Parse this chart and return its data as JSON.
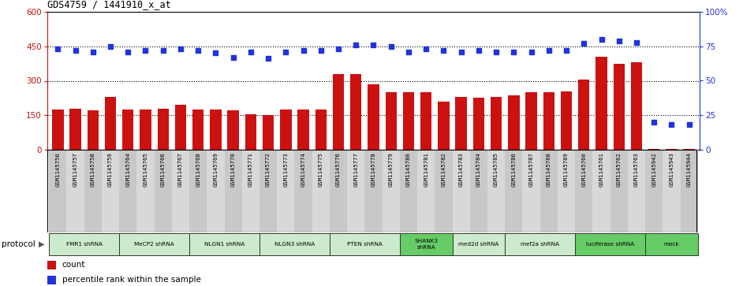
{
  "title": "GDS4759 / 1441910_x_at",
  "samples": [
    "GSM1145756",
    "GSM1145757",
    "GSM1145758",
    "GSM1145759",
    "GSM1145764",
    "GSM1145765",
    "GSM1145766",
    "GSM1145767",
    "GSM1145768",
    "GSM1145769",
    "GSM1145770",
    "GSM1145771",
    "GSM1145772",
    "GSM1145773",
    "GSM1145774",
    "GSM1145775",
    "GSM1145776",
    "GSM1145777",
    "GSM1145778",
    "GSM1145779",
    "GSM1145780",
    "GSM1145781",
    "GSM1145782",
    "GSM1145783",
    "GSM1145784",
    "GSM1145785",
    "GSM1145786",
    "GSM1145787",
    "GSM1145788",
    "GSM1145789",
    "GSM1145760",
    "GSM1145761",
    "GSM1145762",
    "GSM1145763",
    "GSM1145942",
    "GSM1145943",
    "GSM1145944"
  ],
  "bar_values": [
    175,
    180,
    170,
    230,
    175,
    175,
    180,
    195,
    175,
    175,
    170,
    155,
    150,
    175,
    175,
    175,
    330,
    330,
    285,
    250,
    250,
    250,
    210,
    230,
    225,
    230,
    235,
    250,
    250,
    255,
    305,
    405,
    375,
    380,
    5,
    5,
    5
  ],
  "percentile_values": [
    73,
    72,
    71,
    75,
    71,
    72,
    72,
    73,
    72,
    70,
    67,
    71,
    66,
    71,
    72,
    72,
    73,
    76,
    76,
    75,
    71,
    73,
    72,
    71,
    72,
    71,
    71,
    71,
    72,
    72,
    77,
    80,
    79,
    78,
    20,
    18,
    18
  ],
  "protocols": [
    {
      "label": "FMR1 shRNA",
      "start": 0,
      "end": 4,
      "color": "#cceacc"
    },
    {
      "label": "MeCP2 shRNA",
      "start": 4,
      "end": 8,
      "color": "#cceacc"
    },
    {
      "label": "NLGN1 shRNA",
      "start": 8,
      "end": 12,
      "color": "#cceacc"
    },
    {
      "label": "NLGN3 shRNA",
      "start": 12,
      "end": 16,
      "color": "#cceacc"
    },
    {
      "label": "PTEN shRNA",
      "start": 16,
      "end": 20,
      "color": "#cceacc"
    },
    {
      "label": "SHANK3\nshRNA",
      "start": 20,
      "end": 23,
      "color": "#66cc66"
    },
    {
      "label": "med2d shRNA",
      "start": 23,
      "end": 26,
      "color": "#cceacc"
    },
    {
      "label": "mef2a shRNA",
      "start": 26,
      "end": 30,
      "color": "#cceacc"
    },
    {
      "label": "luciferase shRNA",
      "start": 30,
      "end": 34,
      "color": "#66cc66"
    },
    {
      "label": "mock",
      "start": 34,
      "end": 37,
      "color": "#66cc66"
    }
  ],
  "ylim_left": [
    0,
    600
  ],
  "ylim_right": [
    0,
    100
  ],
  "yticks_left": [
    0,
    150,
    300,
    450,
    600
  ],
  "yticks_right": [
    0,
    25,
    50,
    75,
    100
  ],
  "dotted_lines": [
    150,
    300,
    450
  ],
  "bar_color": "#cc1111",
  "dot_color": "#2233dd",
  "plot_bg_color": "#ffffff",
  "tick_label_bg_color": "#cccccc",
  "fig_bg_color": "#ffffff"
}
